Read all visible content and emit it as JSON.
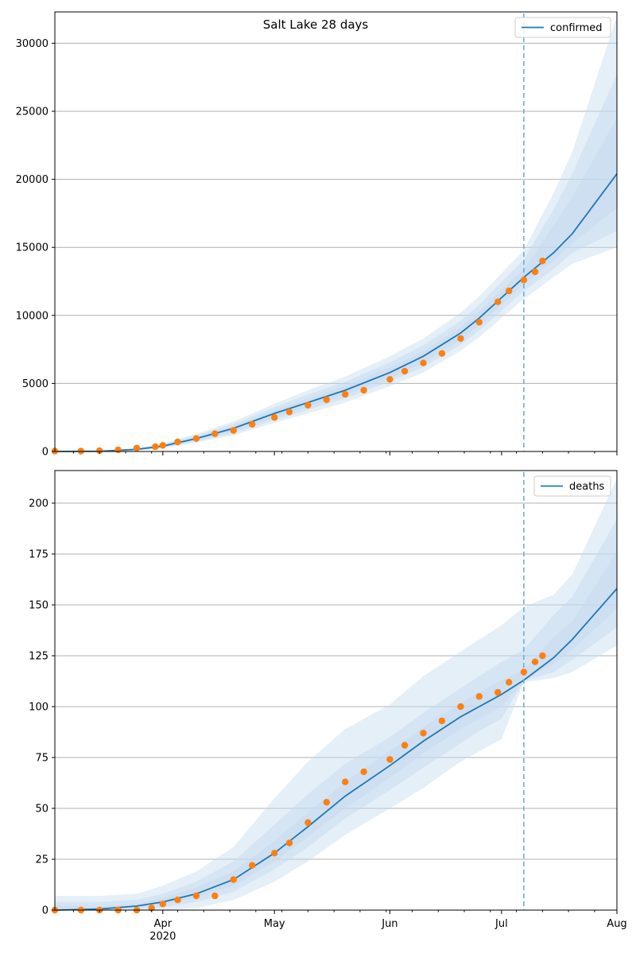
{
  "title": "Salt Lake 28 days",
  "colors": {
    "model": "#1f77b4",
    "observed": "#ff7f0e",
    "band": "#c6dbef",
    "grid": "#b0b0b0",
    "divider": "#6baed6"
  },
  "chart_data": [
    {
      "type": "line",
      "title": "Salt Lake 28 days",
      "legend": "confirmed",
      "legend_position": "top-right",
      "x_axis": {
        "type": "date",
        "range": [
          "2020-03-03",
          "2020-08-01"
        ],
        "ticks": [
          "Apr",
          "May",
          "Jun",
          "Jul",
          "Aug"
        ],
        "year_label": "2020"
      },
      "y_axis": {
        "range": [
          0,
          32300
        ],
        "ticks": [
          0,
          5000,
          10000,
          15000,
          20000,
          25000,
          30000
        ]
      },
      "grid": "horizontal",
      "forecast_start": "2020-07-07",
      "model": {
        "dates": [
          "2020-03-03",
          "2020-03-15",
          "2020-03-25",
          "2020-04-01",
          "2020-04-10",
          "2020-04-20",
          "2020-05-01",
          "2020-05-10",
          "2020-05-20",
          "2020-06-01",
          "2020-06-10",
          "2020-06-20",
          "2020-06-25",
          "2020-07-01",
          "2020-07-07",
          "2020-07-15",
          "2020-07-20",
          "2020-08-01"
        ],
        "values": [
          0,
          20,
          150,
          400,
          950,
          1700,
          2800,
          3600,
          4500,
          5800,
          7000,
          8700,
          9800,
          11300,
          12800,
          14600,
          16000,
          20400
        ]
      },
      "bands": [
        {
          "lower": [
            0,
            10,
            80,
            250,
            650,
            1200,
            2100,
            2800,
            3600,
            4800,
            5800,
            7400,
            8400,
            9800,
            11200,
            12800,
            13800,
            15000
          ],
          "upper": [
            50,
            60,
            250,
            600,
            1300,
            2200,
            3500,
            4500,
            5500,
            7000,
            8300,
            10200,
            11400,
            13100,
            14800,
            19000,
            22000,
            32000
          ]
        },
        {
          "lower": [
            0,
            12,
            95,
            290,
            740,
            1330,
            2300,
            3050,
            3900,
            5150,
            6200,
            7850,
            8900,
            10350,
            11800,
            13400,
            14600,
            16200
          ],
          "upper": [
            35,
            45,
            215,
            530,
            1180,
            2020,
            3260,
            4180,
            5120,
            6550,
            7800,
            9600,
            10780,
            12450,
            14100,
            17800,
            20400,
            27700
          ]
        },
        {
          "lower": [
            0,
            14,
            110,
            330,
            820,
            1460,
            2480,
            3270,
            4150,
            5420,
            6500,
            8200,
            9300,
            10800,
            12300,
            14000,
            15300,
            17900
          ],
          "upper": [
            25,
            35,
            185,
            470,
            1070,
            1850,
            3030,
            3880,
            4830,
            6170,
            7380,
            9100,
            10250,
            11850,
            13400,
            16600,
            18700,
            24500
          ]
        }
      ],
      "observed": {
        "dates": [
          "2020-03-03",
          "2020-03-10",
          "2020-03-15",
          "2020-03-20",
          "2020-03-25",
          "2020-03-30",
          "2020-04-01",
          "2020-04-05",
          "2020-04-10",
          "2020-04-15",
          "2020-04-20",
          "2020-04-25",
          "2020-05-01",
          "2020-05-05",
          "2020-05-10",
          "2020-05-15",
          "2020-05-20",
          "2020-05-25",
          "2020-06-01",
          "2020-06-05",
          "2020-06-10",
          "2020-06-15",
          "2020-06-20",
          "2020-06-25",
          "2020-06-30",
          "2020-07-03",
          "2020-07-07",
          "2020-07-10",
          "2020-07-12"
        ],
        "values": [
          30,
          30,
          60,
          120,
          250,
          350,
          450,
          700,
          950,
          1300,
          1550,
          2000,
          2500,
          2900,
          3400,
          3800,
          4200,
          4500,
          5300,
          5900,
          6500,
          7200,
          8300,
          9500,
          11000,
          11800,
          12600,
          13200,
          14000
        ]
      }
    },
    {
      "type": "line",
      "legend": "deaths",
      "legend_position": "top-right",
      "x_axis": {
        "type": "date",
        "range": [
          "2020-03-03",
          "2020-08-01"
        ],
        "ticks": [
          "Apr",
          "May",
          "Jun",
          "Jul",
          "Aug"
        ],
        "year_label": "2020"
      },
      "y_axis": {
        "range": [
          0,
          216
        ],
        "ticks": [
          0,
          25,
          50,
          75,
          100,
          125,
          150,
          175,
          200
        ]
      },
      "grid": "horizontal",
      "forecast_start": "2020-07-07",
      "model": {
        "dates": [
          "2020-03-03",
          "2020-03-15",
          "2020-03-25",
          "2020-04-01",
          "2020-04-10",
          "2020-04-20",
          "2020-05-01",
          "2020-05-10",
          "2020-05-20",
          "2020-06-01",
          "2020-06-10",
          "2020-06-20",
          "2020-06-25",
          "2020-07-01",
          "2020-07-07",
          "2020-07-15",
          "2020-07-20",
          "2020-08-01"
        ],
        "values": [
          0,
          0.5,
          2,
          4,
          8,
          15,
          28,
          41,
          56,
          71,
          83,
          95,
          100,
          106,
          113,
          124,
          133,
          158
        ]
      },
      "bands": [
        {
          "lower": [
            0,
            0,
            0,
            0,
            1,
            5,
            14,
            24,
            37,
            50,
            60,
            73,
            78,
            84,
            112,
            114,
            117,
            130
          ],
          "upper": [
            7,
            7,
            8,
            12,
            19,
            31,
            55,
            73,
            89,
            101,
            115,
            127,
            133,
            140,
            149,
            155,
            165,
            212
          ]
        },
        {
          "lower": [
            0,
            0,
            0.5,
            1.5,
            4,
            9,
            20,
            31,
            45,
            59,
            70,
            82,
            88,
            94,
            112.5,
            117,
            123,
            139
          ],
          "upper": [
            4,
            4,
            5,
            8,
            14,
            24,
            42,
            57,
            72,
            85,
            97,
            109,
            115,
            122,
            128,
            145,
            154,
            192
          ]
        },
        {
          "lower": [
            0,
            0.3,
            1.2,
            2.8,
            6,
            12,
            24,
            36,
            50,
            65,
            77,
            89,
            94,
            100,
            113,
            121,
            128,
            148
          ],
          "upper": [
            2,
            2,
            3,
            6,
            11,
            19,
            34,
            48,
            63,
            78,
            90,
            102,
            107,
            113,
            118,
            134,
            142,
            176
          ]
        }
      ],
      "observed": {
        "dates": [
          "2020-03-03",
          "2020-03-10",
          "2020-03-15",
          "2020-03-20",
          "2020-03-25",
          "2020-03-29",
          "2020-04-01",
          "2020-04-05",
          "2020-04-10",
          "2020-04-15",
          "2020-04-20",
          "2020-04-25",
          "2020-05-01",
          "2020-05-05",
          "2020-05-10",
          "2020-05-15",
          "2020-05-20",
          "2020-05-25",
          "2020-06-01",
          "2020-06-05",
          "2020-06-10",
          "2020-06-15",
          "2020-06-20",
          "2020-06-25",
          "2020-06-30",
          "2020-07-03",
          "2020-07-07",
          "2020-07-10",
          "2020-07-12"
        ],
        "values": [
          0,
          0,
          0,
          0,
          0,
          1,
          3,
          5,
          7,
          7,
          15,
          22,
          28,
          33,
          43,
          53,
          63,
          68,
          74,
          81,
          87,
          93,
          100,
          105,
          107,
          112,
          117,
          122,
          125
        ]
      }
    }
  ]
}
